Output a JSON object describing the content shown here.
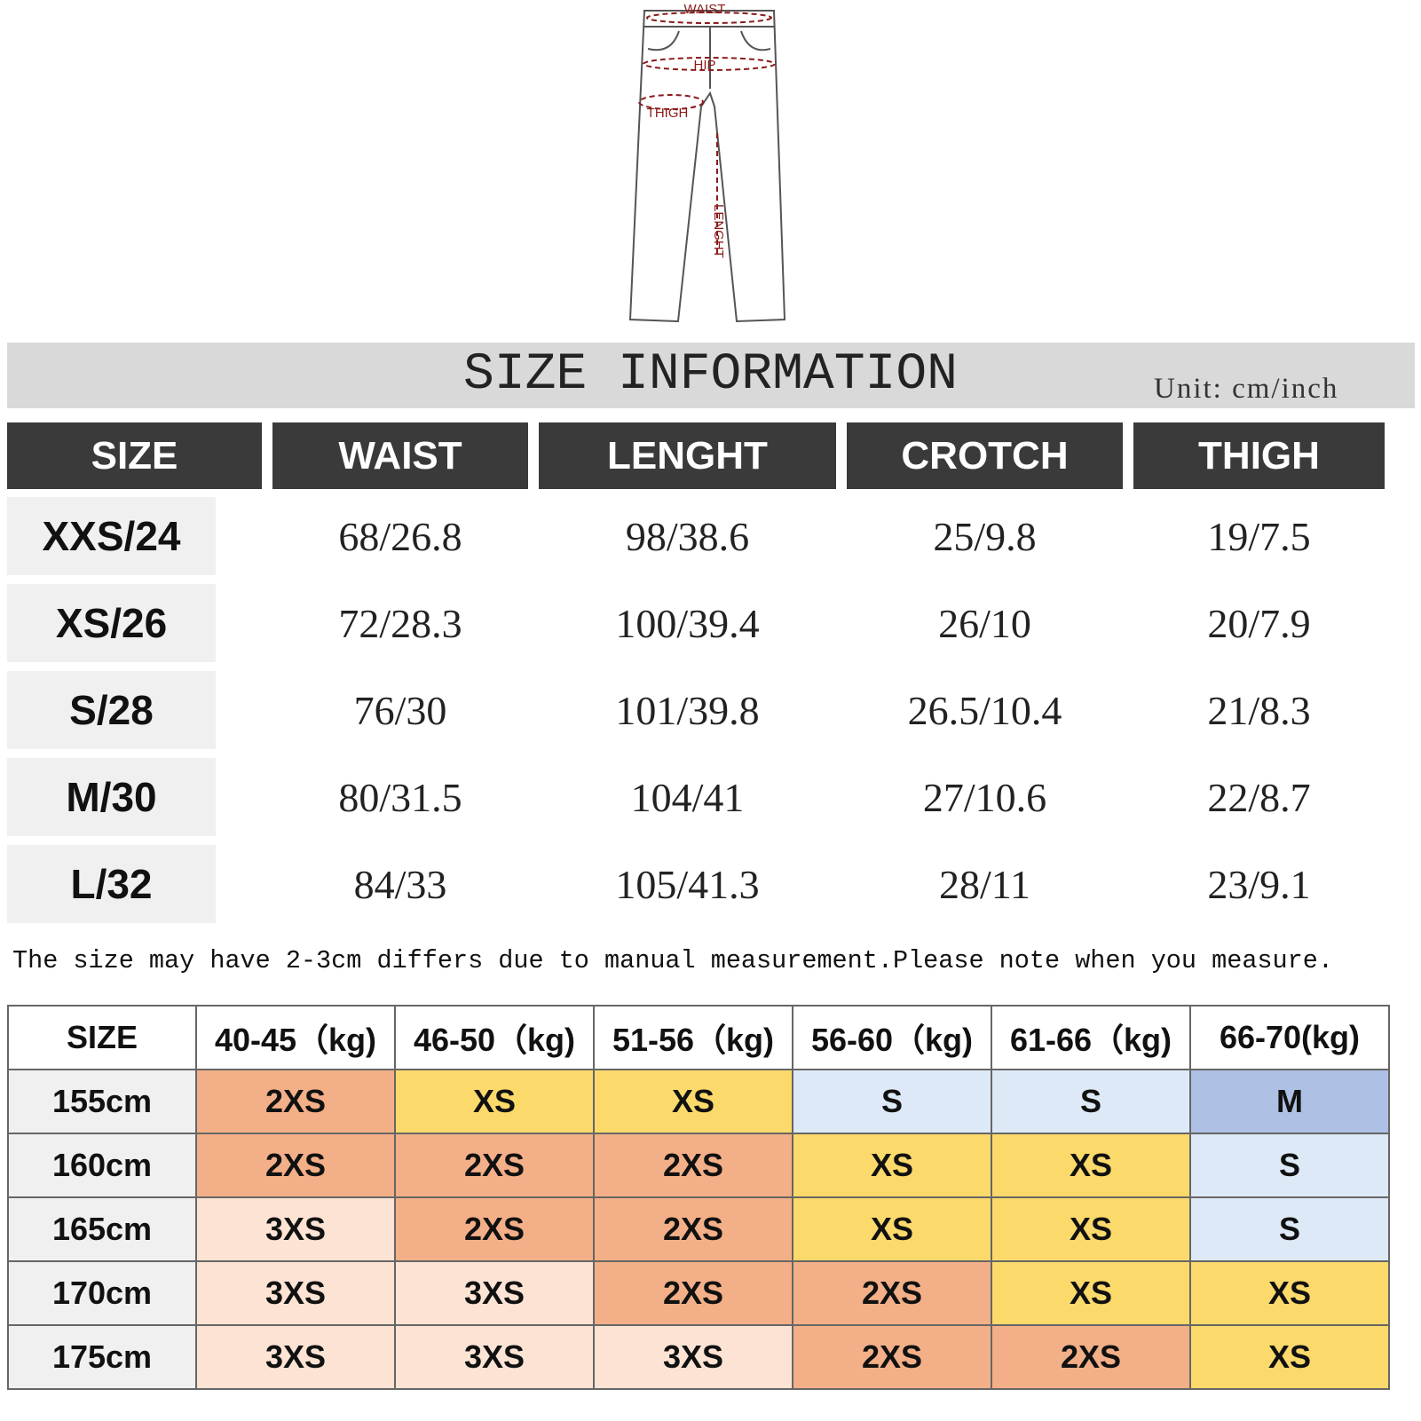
{
  "diagram": {
    "labels": [
      "WAIST",
      "HIP",
      "THIGH",
      "LENGHT"
    ]
  },
  "size_table": {
    "title": "SIZE INFORMATION",
    "unit": "Unit: cm/inch",
    "headers": [
      "SIZE",
      "WAIST",
      "LENGHT",
      "CROTCH",
      "THIGH"
    ],
    "rows": [
      [
        "XXS/24",
        "68/26.8",
        "98/38.6",
        "25/9.8",
        "19/7.5"
      ],
      [
        "XS/26",
        "72/28.3",
        "100/39.4",
        "26/10",
        "20/7.9"
      ],
      [
        "S/28",
        "76/30",
        "101/39.8",
        "26.5/10.4",
        "21/8.3"
      ],
      [
        "M/30",
        "80/31.5",
        "104/41",
        "27/10.6",
        "22/8.7"
      ],
      [
        "L/32",
        "84/33",
        "105/41.3",
        "28/11",
        "23/9.1"
      ]
    ]
  },
  "note": "The size may have 2-3cm differs due to manual measurement.Please note when you measure.",
  "weight_table": {
    "headers": [
      "SIZE",
      "40-45（kg)",
      "46-50（kg)",
      "51-56（kg)",
      "56-60（kg)",
      "61-66（kg)",
      "66-70(kg)"
    ],
    "rows": [
      [
        "155cm",
        "2XS",
        "XS",
        "XS",
        "S",
        "S",
        "M"
      ],
      [
        "160cm",
        "2XS",
        "2XS",
        "2XS",
        "XS",
        "XS",
        "S"
      ],
      [
        "165cm",
        "3XS",
        "2XS",
        "2XS",
        "XS",
        "XS",
        "S"
      ],
      [
        "170cm",
        "3XS",
        "3XS",
        "2XS",
        "2XS",
        "XS",
        "XS"
      ],
      [
        "175cm",
        "3XS",
        "3XS",
        "3XS",
        "2XS",
        "2XS",
        "XS"
      ]
    ],
    "colors": {
      "2XS": "#f3af87",
      "XS": "#fbd96b",
      "S": "#dde9f6",
      "M": "#aec0e4",
      "3XS": "#fde3d3"
    }
  }
}
